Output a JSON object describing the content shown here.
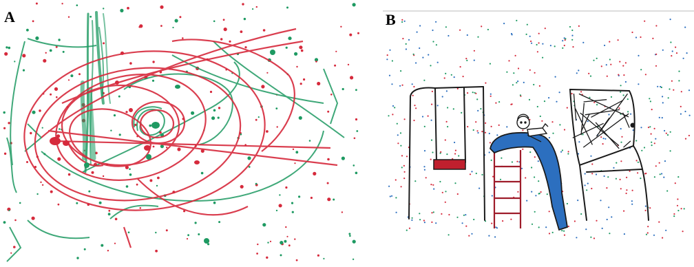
{
  "panels": [
    {
      "label": "A",
      "drawing": "scribble-drawing-red-green"
    },
    {
      "label": "B",
      "drawing": "playground-drawing-swing-slide-net"
    }
  ],
  "colors": {
    "red": "#d62a3c",
    "green": "#1e9a62",
    "blue": "#2c6fbf",
    "black": "#1a1a1a",
    "paper": "#ffffff"
  }
}
